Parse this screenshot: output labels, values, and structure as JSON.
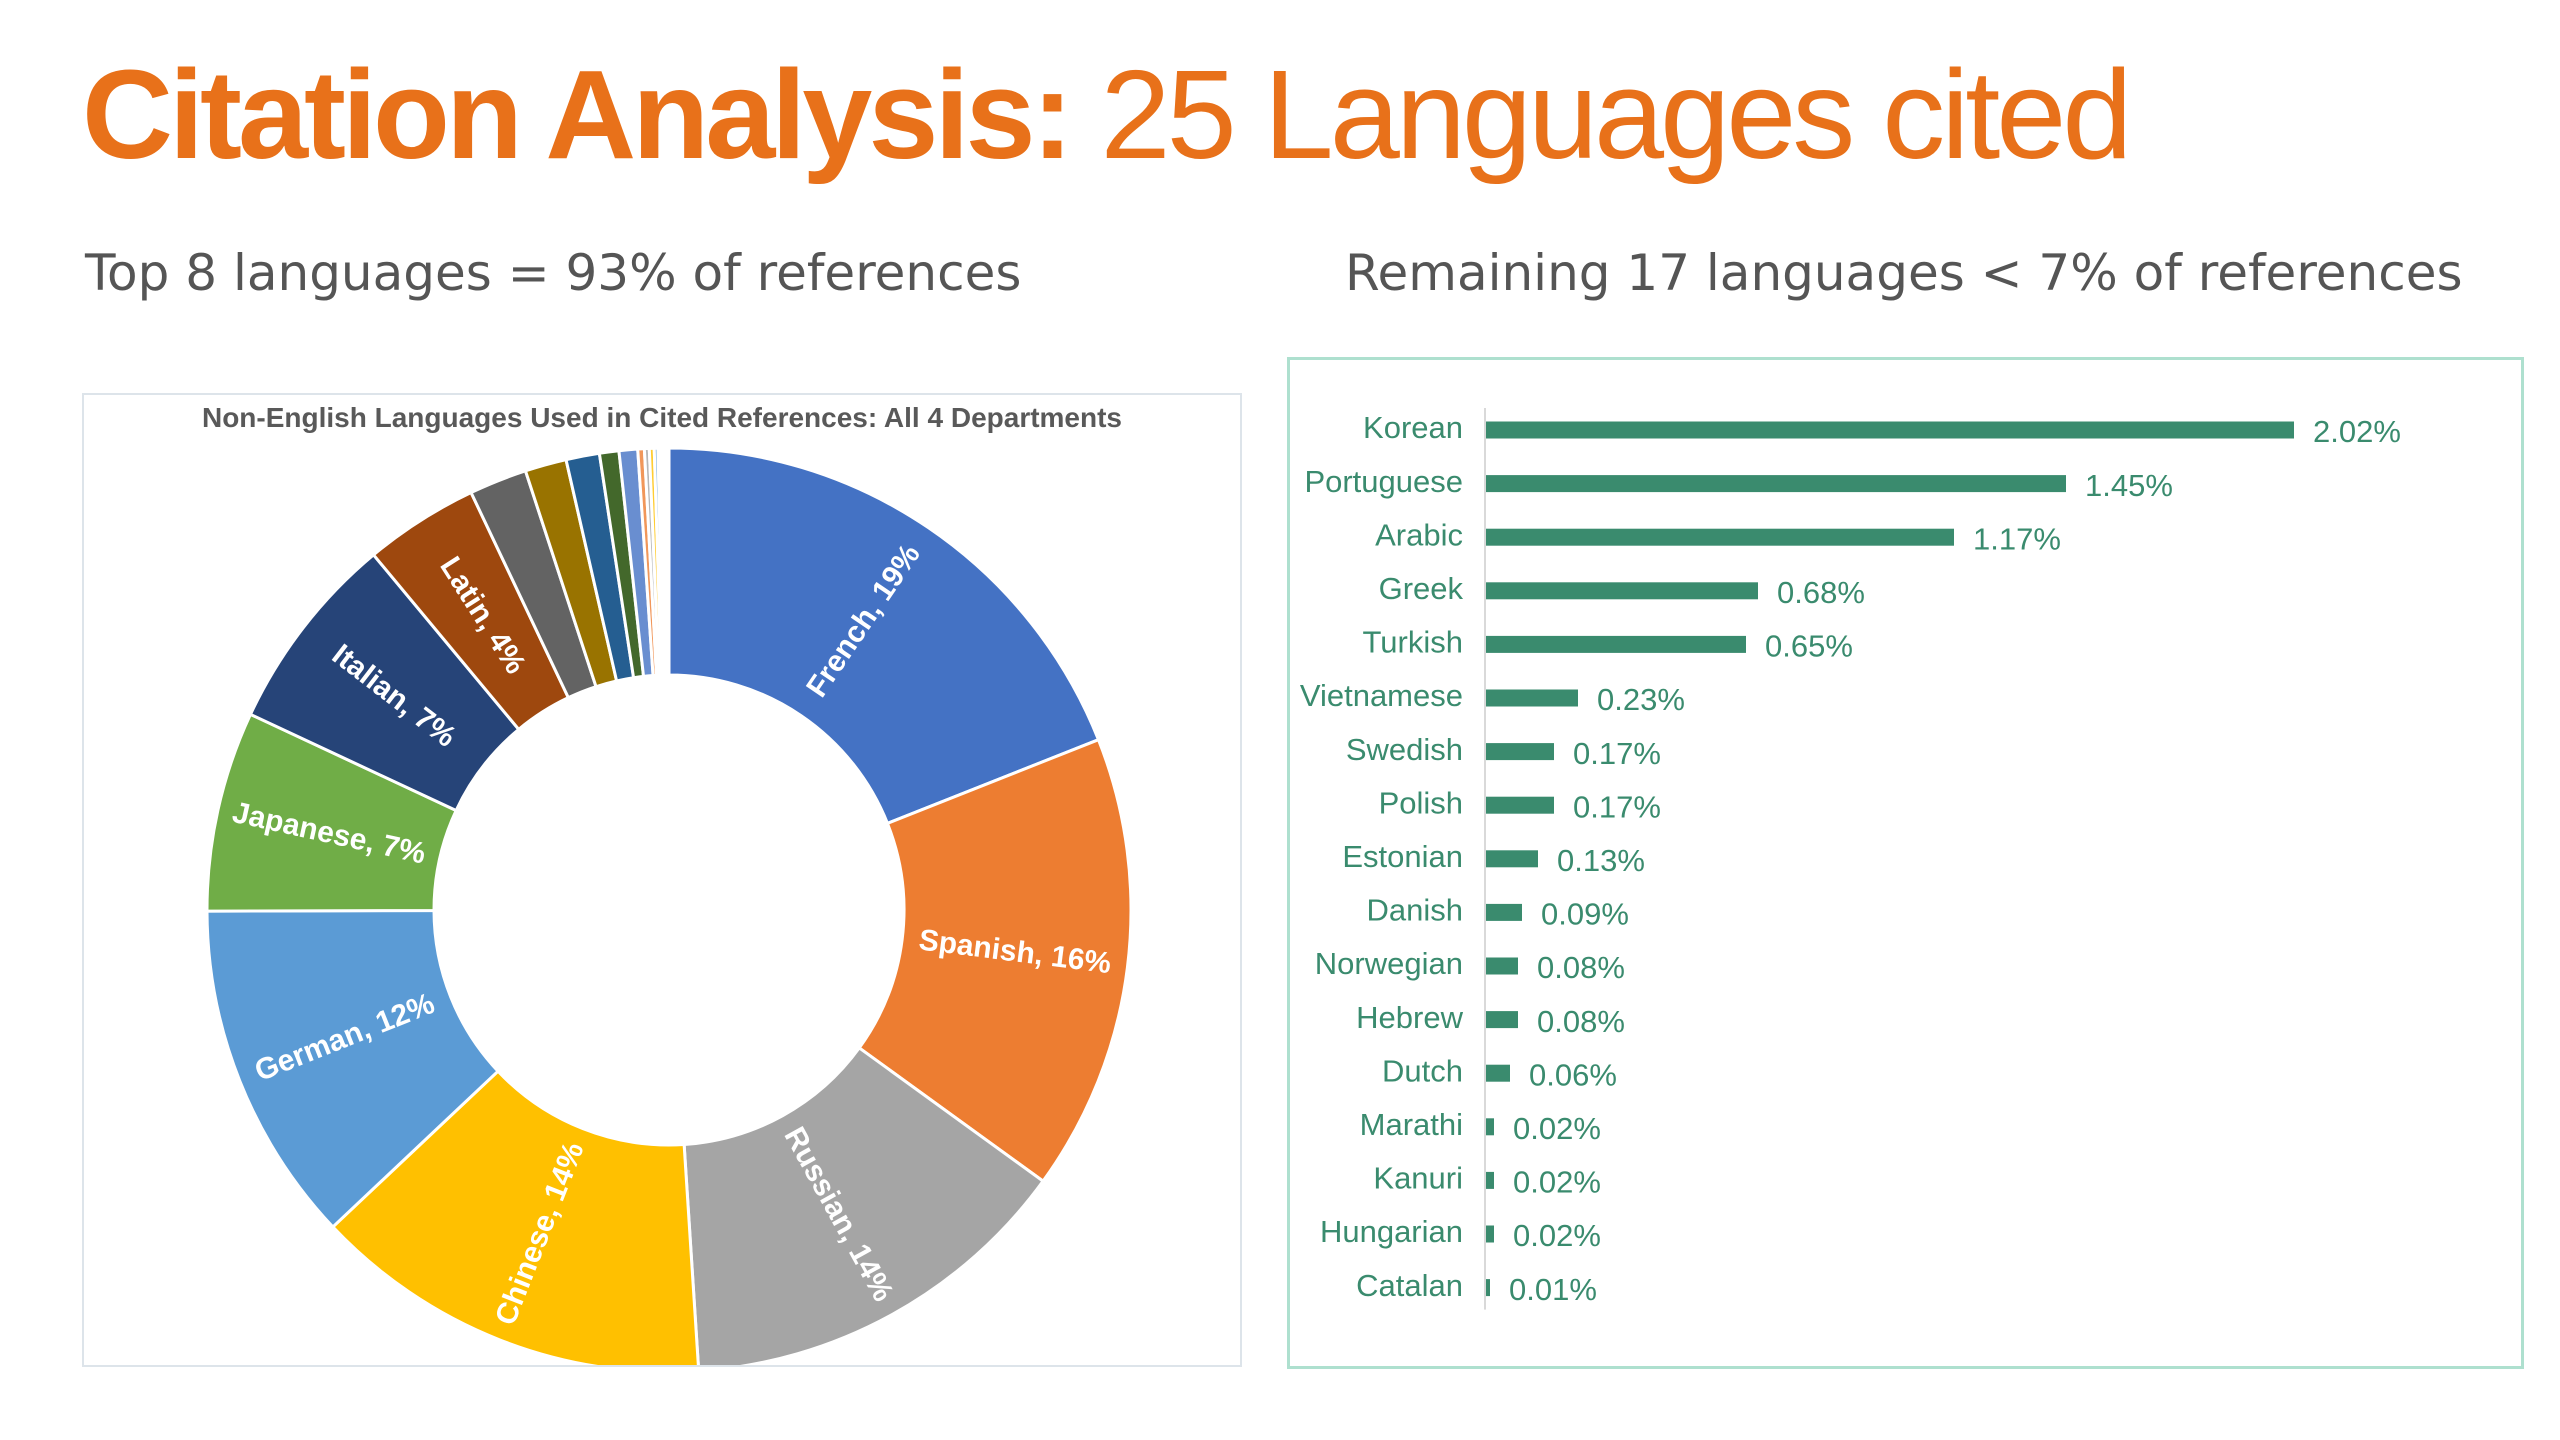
{
  "title": {
    "bold": "Citation Analysis:",
    "rest": " 25 Languages cited"
  },
  "subtitles": {
    "left": "Top 8 languages = 93% of references",
    "right": "Remaining 17 languages < 7% of references"
  },
  "colors": {
    "title": "#e8711a",
    "bars": "#3a8b6e",
    "panel_border": "#aee0cf"
  },
  "chart_data": [
    {
      "type": "donut",
      "title": "Non-English Languages Used in Cited References: All 4 Departments",
      "labels_shown": [
        "French, 19%",
        "Spanish, 16%",
        "Russian, 14%",
        "Chinese, 14%",
        "German, 12%",
        "Japanese, 7%",
        "Italian, 7%",
        "Latin, 4%"
      ],
      "slices": [
        {
          "name": "French",
          "value": 19,
          "color": "#4472c4"
        },
        {
          "name": "Spanish",
          "value": 16,
          "color": "#ed7d31"
        },
        {
          "name": "Russian",
          "value": 14,
          "color": "#a5a5a5"
        },
        {
          "name": "Chinese",
          "value": 14,
          "color": "#ffc000"
        },
        {
          "name": "German",
          "value": 12,
          "color": "#5b9bd5"
        },
        {
          "name": "Japanese",
          "value": 7,
          "color": "#70ad47"
        },
        {
          "name": "Italian",
          "value": 7,
          "color": "#264478"
        },
        {
          "name": "Latin",
          "value": 4,
          "color": "#9e480e"
        },
        {
          "name": "Korean",
          "value": 2.02,
          "color": "#636363"
        },
        {
          "name": "Portuguese",
          "value": 1.45,
          "color": "#997300"
        },
        {
          "name": "Arabic",
          "value": 1.17,
          "color": "#255e91"
        },
        {
          "name": "Greek",
          "value": 0.68,
          "color": "#43682b"
        },
        {
          "name": "Turkish",
          "value": 0.65,
          "color": "#698ed0"
        },
        {
          "name": "Vietnamese",
          "value": 0.23,
          "color": "#f1975a"
        },
        {
          "name": "Swedish",
          "value": 0.17,
          "color": "#b7b7b7"
        },
        {
          "name": "Polish",
          "value": 0.17,
          "color": "#ffcd33"
        },
        {
          "name": "Estonian",
          "value": 0.13,
          "color": "#7cafdd"
        },
        {
          "name": "Danish",
          "value": 0.09,
          "color": "#8cc168"
        },
        {
          "name": "Norwegian",
          "value": 0.08,
          "color": "#335aa1"
        },
        {
          "name": "Hebrew",
          "value": 0.08,
          "color": "#d26012"
        },
        {
          "name": "Dutch",
          "value": 0.06,
          "color": "#848484"
        },
        {
          "name": "Marathi",
          "value": 0.02,
          "color": "#cc9a00"
        },
        {
          "name": "Kanuri",
          "value": 0.02,
          "color": "#2e75b6"
        },
        {
          "name": "Hungarian",
          "value": 0.02,
          "color": "#548235"
        },
        {
          "name": "Catalan",
          "value": 0.01,
          "color": "#a9c3e8"
        }
      ]
    },
    {
      "type": "bar",
      "orientation": "horizontal",
      "categories": [
        "Korean",
        "Portuguese",
        "Arabic",
        "Greek",
        "Turkish",
        "Vietnamese",
        "Swedish",
        "Polish",
        "Estonian",
        "Danish",
        "Norwegian",
        "Hebrew",
        "Dutch",
        "Marathi",
        "Kanuri",
        "Hungarian",
        "Catalan"
      ],
      "values": [
        2.02,
        1.45,
        1.17,
        0.68,
        0.65,
        0.23,
        0.17,
        0.17,
        0.13,
        0.09,
        0.08,
        0.08,
        0.06,
        0.02,
        0.02,
        0.02,
        0.01
      ],
      "value_labels": [
        "2.02%",
        "1.45%",
        "1.17%",
        "0.68%",
        "0.65%",
        "0.23%",
        "0.17%",
        "0.17%",
        "0.13%",
        "0.09%",
        "0.08%",
        "0.08%",
        "0.06%",
        "0.02%",
        "0.02%",
        "0.02%",
        "0.01%"
      ],
      "xlim": [
        0,
        2.02
      ],
      "grid": false
    }
  ]
}
